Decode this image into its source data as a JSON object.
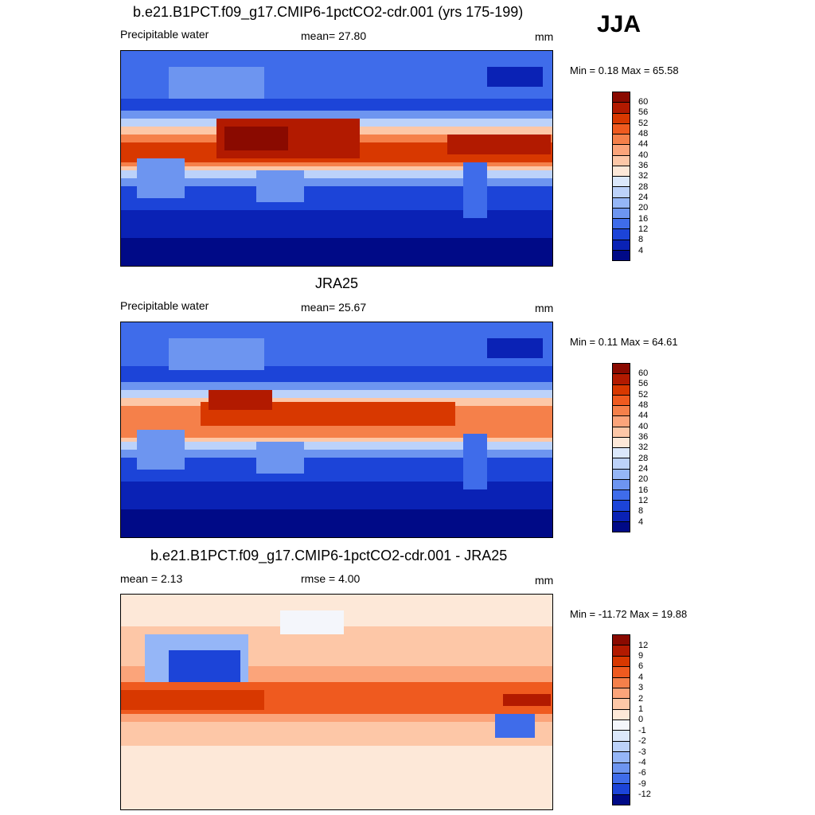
{
  "season": "JJA",
  "panels": [
    {
      "title": "b.e21.B1PCT.f09_g17.CMIP6-1pctCO2-cdr.001 (yrs 175-199)",
      "left_label": "Precipitable water",
      "center_label": "mean=  27.80",
      "units": "mm",
      "minmax": "Min =   0.18 Max =  65.58",
      "colorbar_levels": [
        "60",
        "56",
        "52",
        "48",
        "44",
        "40",
        "36",
        "32",
        "28",
        "24",
        "20",
        "16",
        "12",
        "8",
        "4"
      ],
      "colorbar_colors": [
        "#8a0a00",
        "#b21a00",
        "#d83800",
        "#ef5a1f",
        "#f5804a",
        "#fba47a",
        "#fdc7a7",
        "#fde8d8",
        "#dbe8fb",
        "#bcd2fa",
        "#95b6f7",
        "#6d95f0",
        "#3f6cea",
        "#1c44d8",
        "#0a22b5",
        "#000a87"
      ]
    },
    {
      "title": "JRA25",
      "left_label": "Precipitable water",
      "center_label": "mean=  25.67",
      "units": "mm",
      "minmax": "Min =   0.11 Max =  64.61",
      "colorbar_levels": [
        "60",
        "56",
        "52",
        "48",
        "44",
        "40",
        "36",
        "32",
        "28",
        "24",
        "20",
        "16",
        "12",
        "8",
        "4"
      ],
      "colorbar_colors": [
        "#8a0a00",
        "#b21a00",
        "#d83800",
        "#ef5a1f",
        "#f5804a",
        "#fba47a",
        "#fdc7a7",
        "#fde8d8",
        "#dbe8fb",
        "#bcd2fa",
        "#95b6f7",
        "#6d95f0",
        "#3f6cea",
        "#1c44d8",
        "#0a22b5",
        "#000a87"
      ]
    },
    {
      "title": "b.e21.B1PCT.f09_g17.CMIP6-1pctCO2-cdr.001 - JRA25",
      "left_label": "mean =   2.13",
      "center_label": "rmse =   4.00",
      "units": "mm",
      "minmax": "Min = -11.72 Max =  19.88",
      "colorbar_levels": [
        "12",
        "9",
        "6",
        "4",
        "3",
        "2",
        "1",
        "0",
        "-1",
        "-2",
        "-3",
        "-4",
        "-6",
        "-9",
        "-12"
      ],
      "colorbar_colors": [
        "#8a0a00",
        "#b21a00",
        "#d83800",
        "#ef5a1f",
        "#f5804a",
        "#fba47a",
        "#fdc7a7",
        "#fde8d8",
        "#f4f6fb",
        "#dbe8fb",
        "#bcd2fa",
        "#95b6f7",
        "#6d95f0",
        "#3f6cea",
        "#1c44d8",
        "#000a87"
      ]
    }
  ]
}
